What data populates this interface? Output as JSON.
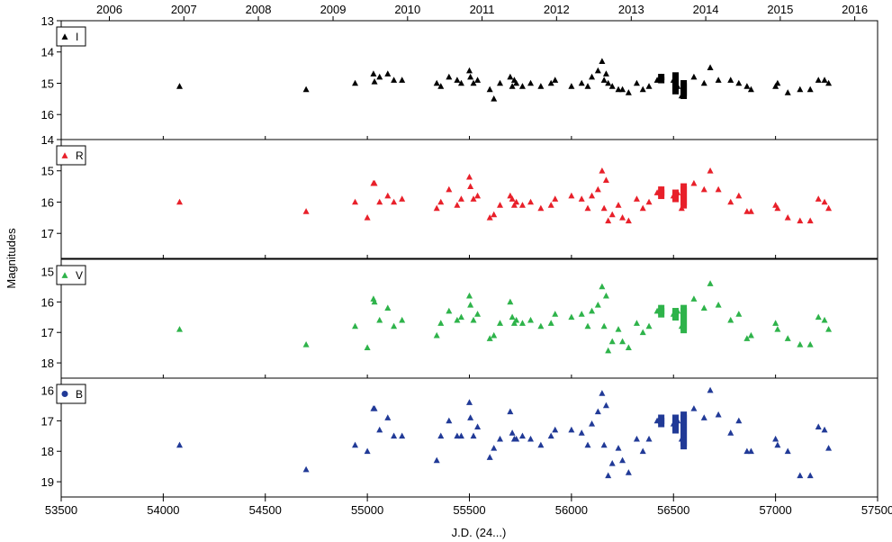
{
  "chart_data": {
    "type": "scatter",
    "xlabel": "J.D. (24...)",
    "ylabel": "Magnitudes",
    "xlim": [
      53500,
      57500
    ],
    "x_ticks": [
      53500,
      54000,
      54500,
      55000,
      55500,
      56000,
      56500,
      57000,
      57500
    ],
    "top_axis": {
      "labels": [
        "2006",
        "2007",
        "2008",
        "2009",
        "2010",
        "2011",
        "2012",
        "2013",
        "2014",
        "2015",
        "2016"
      ],
      "jd": [
        53736,
        54101,
        54466,
        54832,
        55197,
        55562,
        55927,
        56293,
        56658,
        57023,
        57388
      ]
    },
    "y_reversed": true,
    "grid": false,
    "legend_position": "top-left",
    "series": [
      {
        "name": "I",
        "color": "#000000",
        "marker": "triangle",
        "ylim": [
          13,
          16.8
        ],
        "y_ticks": [
          13,
          14,
          15,
          16
        ],
        "x": [
          54080,
          54700,
          54940,
          55030,
          55035,
          55060,
          55100,
          55130,
          55170,
          55340,
          55360,
          55400,
          55440,
          55460,
          55500,
          55505,
          55520,
          55540,
          55600,
          55620,
          55650,
          55700,
          55710,
          55720,
          55730,
          55760,
          55800,
          55850,
          55900,
          55920,
          56000,
          56050,
          56080,
          56100,
          56130,
          56150,
          56160,
          56170,
          56180,
          56200,
          56230,
          56250,
          56280,
          56320,
          56350,
          56380,
          56420,
          56440,
          56500,
          56510,
          56520,
          56540,
          56600,
          56650,
          56680,
          56720,
          56780,
          56820,
          56860,
          56880,
          57000,
          57010,
          57060,
          57120,
          57170,
          57210,
          57240,
          57260
        ],
        "y": [
          15.1,
          15.2,
          15.0,
          14.7,
          14.95,
          14.8,
          14.7,
          14.9,
          14.9,
          15.0,
          15.1,
          14.8,
          14.9,
          15.0,
          14.6,
          14.8,
          15.0,
          14.9,
          15.2,
          15.5,
          15.0,
          14.8,
          15.1,
          14.9,
          15.0,
          15.1,
          15.0,
          15.1,
          15.0,
          14.9,
          15.1,
          15.0,
          15.1,
          14.8,
          14.6,
          14.3,
          14.9,
          14.7,
          15.0,
          15.1,
          15.2,
          15.2,
          15.3,
          15.0,
          15.2,
          15.1,
          14.9,
          14.8,
          14.9,
          15.0,
          15.1,
          15.4,
          14.8,
          15.0,
          14.5,
          14.9,
          14.9,
          15.0,
          15.1,
          15.2,
          15.1,
          15.0,
          15.3,
          15.2,
          15.2,
          14.9,
          14.9,
          15.0
        ]
      },
      {
        "name": "R",
        "color": "#e8202a",
        "marker": "triangle",
        "ylim": [
          14,
          17.8
        ],
        "y_ticks": [
          14,
          15,
          16,
          17
        ],
        "x": [
          54080,
          54700,
          54940,
          55000,
          55030,
          55035,
          55060,
          55100,
          55130,
          55170,
          55340,
          55360,
          55400,
          55440,
          55460,
          55500,
          55505,
          55520,
          55540,
          55600,
          55620,
          55650,
          55700,
          55710,
          55720,
          55730,
          55760,
          55800,
          55850,
          55900,
          55920,
          56000,
          56050,
          56080,
          56100,
          56130,
          56150,
          56160,
          56170,
          56180,
          56200,
          56230,
          56250,
          56280,
          56320,
          56350,
          56380,
          56420,
          56440,
          56500,
          56510,
          56520,
          56540,
          56600,
          56650,
          56680,
          56720,
          56780,
          56820,
          56860,
          56880,
          57000,
          57010,
          57060,
          57120,
          57170,
          57210,
          57240,
          57260
        ],
        "y": [
          16.0,
          16.3,
          16.0,
          16.5,
          15.4,
          15.4,
          16.0,
          15.8,
          16.0,
          15.9,
          16.2,
          16.0,
          15.6,
          16.1,
          15.9,
          15.2,
          15.5,
          15.9,
          15.8,
          16.5,
          16.4,
          16.1,
          15.8,
          15.9,
          16.1,
          16.0,
          16.1,
          16.0,
          16.2,
          16.1,
          15.9,
          15.8,
          15.9,
          16.2,
          15.8,
          15.6,
          15.0,
          16.2,
          15.3,
          16.6,
          16.4,
          16.1,
          16.5,
          16.6,
          15.9,
          16.2,
          16.0,
          15.7,
          15.6,
          15.8,
          15.9,
          15.7,
          16.2,
          15.4,
          15.6,
          15.0,
          15.6,
          16.0,
          15.8,
          16.3,
          16.3,
          16.1,
          16.2,
          16.5,
          16.6,
          16.6,
          15.9,
          16.0,
          16.2
        ]
      },
      {
        "name": "V",
        "color": "#2eb34a",
        "marker": "triangle",
        "ylim": [
          14.6,
          18.5
        ],
        "y_ticks": [
          15,
          16,
          17,
          18
        ],
        "x": [
          54080,
          54700,
          54940,
          55000,
          55030,
          55035,
          55060,
          55100,
          55130,
          55170,
          55340,
          55360,
          55400,
          55440,
          55460,
          55500,
          55505,
          55520,
          55540,
          55600,
          55620,
          55650,
          55700,
          55710,
          55720,
          55730,
          55760,
          55800,
          55850,
          55900,
          55920,
          56000,
          56050,
          56080,
          56100,
          56130,
          56150,
          56160,
          56170,
          56180,
          56200,
          56230,
          56250,
          56280,
          56320,
          56350,
          56380,
          56420,
          56440,
          56500,
          56510,
          56520,
          56540,
          56600,
          56650,
          56680,
          56720,
          56780,
          56820,
          56860,
          56880,
          57000,
          57010,
          57060,
          57120,
          57170,
          57210,
          57240,
          57260
        ],
        "y": [
          16.9,
          17.4,
          16.8,
          17.5,
          15.9,
          16.0,
          16.6,
          16.2,
          16.8,
          16.6,
          17.1,
          16.7,
          16.3,
          16.6,
          16.5,
          15.8,
          16.1,
          16.6,
          16.4,
          17.2,
          17.1,
          16.7,
          16.0,
          16.5,
          16.7,
          16.6,
          16.7,
          16.6,
          16.8,
          16.7,
          16.4,
          16.5,
          16.4,
          16.8,
          16.3,
          16.1,
          15.5,
          16.8,
          15.8,
          17.6,
          17.3,
          16.9,
          17.3,
          17.5,
          16.7,
          17.0,
          16.8,
          16.3,
          16.2,
          16.4,
          16.5,
          16.3,
          16.8,
          15.9,
          16.2,
          15.4,
          16.1,
          16.6,
          16.4,
          17.2,
          17.1,
          16.7,
          16.9,
          17.2,
          17.4,
          17.4,
          16.5,
          16.6,
          16.9
        ]
      },
      {
        "name": "B",
        "color": "#213a97",
        "marker": "triangle",
        "ylim": [
          15.6,
          19.5
        ],
        "y_ticks": [
          16,
          17,
          18,
          19
        ],
        "x": [
          54080,
          54700,
          54940,
          55000,
          55030,
          55035,
          55060,
          55100,
          55130,
          55170,
          55340,
          55360,
          55400,
          55440,
          55460,
          55500,
          55505,
          55520,
          55540,
          55600,
          55620,
          55650,
          55700,
          55710,
          55720,
          55730,
          55760,
          55800,
          55850,
          55900,
          55920,
          56000,
          56050,
          56080,
          56100,
          56130,
          56150,
          56160,
          56170,
          56180,
          56200,
          56230,
          56250,
          56280,
          56320,
          56350,
          56380,
          56420,
          56440,
          56500,
          56510,
          56520,
          56540,
          56600,
          56650,
          56680,
          56720,
          56780,
          56820,
          56860,
          56880,
          57000,
          57010,
          57060,
          57120,
          57170,
          57210,
          57240,
          57260
        ],
        "y": [
          17.8,
          18.6,
          17.8,
          18.0,
          16.6,
          16.6,
          17.3,
          16.9,
          17.5,
          17.5,
          18.3,
          17.5,
          17.0,
          17.5,
          17.5,
          16.4,
          16.9,
          17.5,
          17.2,
          18.2,
          17.9,
          17.6,
          16.7,
          17.4,
          17.6,
          17.6,
          17.5,
          17.6,
          17.8,
          17.5,
          17.3,
          17.3,
          17.4,
          17.8,
          17.1,
          16.7,
          16.1,
          17.8,
          16.5,
          18.8,
          18.4,
          17.9,
          18.3,
          18.7,
          17.6,
          18.0,
          17.6,
          17.0,
          16.9,
          17.1,
          17.2,
          17.0,
          17.6,
          16.6,
          16.9,
          16.0,
          16.8,
          17.4,
          17.0,
          18.0,
          18.0,
          17.6,
          17.8,
          18.0,
          18.8,
          18.8,
          17.2,
          17.3,
          17.9
        ]
      }
    ],
    "dense_clusters": [
      {
        "series": "I",
        "x": 56440,
        "y": [
          14.8,
          15.0
        ]
      },
      {
        "series": "I",
        "x": 56510,
        "y": [
          14.75,
          15.3
        ]
      },
      {
        "series": "I",
        "x": 56550,
        "y": [
          15.0,
          15.5
        ]
      },
      {
        "series": "R",
        "x": 56440,
        "y": [
          15.6,
          15.9
        ]
      },
      {
        "series": "R",
        "x": 56510,
        "y": [
          15.7,
          16.0
        ]
      },
      {
        "series": "R",
        "x": 56550,
        "y": [
          15.5,
          16.2
        ]
      },
      {
        "series": "V",
        "x": 56440,
        "y": [
          16.2,
          16.5
        ]
      },
      {
        "series": "V",
        "x": 56510,
        "y": [
          16.3,
          16.6
        ]
      },
      {
        "series": "V",
        "x": 56550,
        "y": [
          16.2,
          17.0
        ]
      },
      {
        "series": "B",
        "x": 56440,
        "y": [
          16.9,
          17.2
        ]
      },
      {
        "series": "B",
        "x": 56510,
        "y": [
          16.9,
          17.4
        ]
      },
      {
        "series": "B",
        "x": 56550,
        "y": [
          16.8,
          17.9
        ]
      }
    ],
    "legend_markers": {
      "I": "triangle",
      "R": "triangle",
      "V": "triangle",
      "B": "circle"
    }
  }
}
